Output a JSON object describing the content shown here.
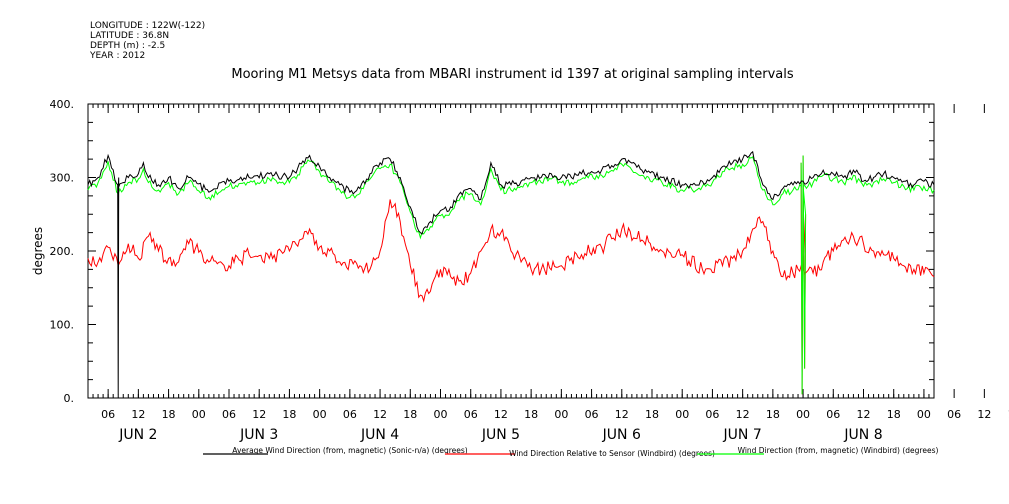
{
  "meta": {
    "longitude": "LONGITUDE : 122W(-122)",
    "latitude": "LATITUDE : 36.8N",
    "depth": "DEPTH (m) : -2.5",
    "year": "YEAR : 2012"
  },
  "chart_data": {
    "type": "line",
    "title": "Mooring M1 Metsys data from MBARI instrument id 1397 at original sampling intervals",
    "ylabel": "degrees",
    "ylim": [
      0,
      400
    ],
    "yticks": [
      "0.",
      "100.",
      "200.",
      "300.",
      "400."
    ],
    "xlim_hours": [
      -10,
      158
    ],
    "hour_tick_labels": [
      "06",
      "12",
      "18",
      "00",
      "06",
      "12",
      "18",
      "00",
      "06",
      "12",
      "18",
      "00",
      "06",
      "12",
      "18",
      "00",
      "06",
      "12",
      "18",
      "00",
      "06",
      "12",
      "18",
      "00",
      "06",
      "12",
      "18",
      "00",
      "06",
      "12",
      "18",
      "00"
    ],
    "day_labels": [
      "JUN  2",
      "JUN  3",
      "JUN  4",
      "JUN  5",
      "JUN  6",
      "JUN  7",
      "JUN  8"
    ],
    "grid": false,
    "legend_position": "bottom",
    "series": [
      {
        "name": "Average Wind Direction (from, magnetic) (Sonic-n/a) (degrees)",
        "color": "#000000",
        "x": [
          -10,
          -8,
          -6,
          -4,
          -2,
          0,
          1,
          2,
          4,
          6,
          8,
          10,
          14,
          18,
          22,
          26,
          30,
          34,
          36,
          38,
          40,
          42,
          44,
          46,
          48,
          50,
          52,
          54,
          56,
          58,
          60,
          62,
          64,
          66,
          68,
          70,
          72,
          74,
          76,
          78,
          80,
          82,
          84,
          86,
          88,
          92,
          96,
          100,
          104,
          108,
          110,
          112,
          114,
          116,
          118,
          120,
          122,
          124,
          126,
          128,
          130,
          132,
          134,
          136,
          138,
          140,
          142,
          144,
          146,
          148,
          150,
          152,
          154,
          156,
          158
        ],
        "y": [
          290,
          300,
          330,
          285,
          300,
          305,
          320,
          300,
          290,
          300,
          285,
          300,
          280,
          295,
          300,
          305,
          300,
          330,
          315,
          300,
          290,
          280,
          285,
          305,
          320,
          325,
          300,
          260,
          225,
          240,
          255,
          260,
          280,
          285,
          270,
          320,
          290,
          290,
          295,
          300,
          300,
          305,
          300,
          300,
          305,
          310,
          325,
          310,
          300,
          290,
          290,
          295,
          300,
          315,
          320,
          325,
          335,
          290,
          270,
          285,
          290,
          295,
          300,
          310,
          305,
          300,
          310,
          295,
          300,
          305,
          300,
          295,
          290,
          295,
          290
        ]
      },
      {
        "name": "Wind Direction Relative to Sensor (Windbird) (degrees)",
        "color": "#ff0000",
        "x": [
          -10,
          -8,
          -6,
          -4,
          -2,
          0,
          2,
          4,
          6,
          8,
          10,
          14,
          18,
          22,
          26,
          30,
          34,
          36,
          38,
          40,
          44,
          46,
          48,
          50,
          52,
          54,
          56,
          58,
          60,
          62,
          64,
          66,
          68,
          70,
          72,
          74,
          76,
          78,
          80,
          84,
          88,
          92,
          96,
          100,
          104,
          108,
          112,
          116,
          118,
          120,
          122,
          124,
          126,
          128,
          130,
          132,
          134,
          136,
          138,
          140,
          142,
          144,
          146,
          148,
          150,
          152,
          154,
          156,
          158
        ],
        "y": [
          190,
          185,
          205,
          180,
          210,
          190,
          220,
          200,
          190,
          185,
          210,
          185,
          180,
          195,
          190,
          200,
          230,
          205,
          200,
          185,
          180,
          175,
          200,
          270,
          240,
          180,
          140,
          145,
          175,
          165,
          160,
          170,
          200,
          230,
          225,
          200,
          185,
          175,
          175,
          180,
          195,
          205,
          230,
          215,
          200,
          195,
          175,
          180,
          190,
          200,
          230,
          240,
          200,
          165,
          170,
          175,
          170,
          185,
          200,
          215,
          220,
          210,
          200,
          195,
          190,
          180,
          175,
          170,
          165
        ]
      },
      {
        "name": "Wind Direction (from, magnetic) (Windbird) (degrees)",
        "color": "#00ff00",
        "x": [
          -10,
          -8,
          -6,
          -4,
          -2,
          0,
          1,
          2,
          4,
          6,
          8,
          10,
          14,
          18,
          22,
          26,
          30,
          34,
          36,
          38,
          40,
          42,
          44,
          46,
          48,
          50,
          52,
          54,
          56,
          58,
          60,
          62,
          64,
          66,
          68,
          70,
          72,
          74,
          76,
          78,
          80,
          82,
          84,
          86,
          88,
          92,
          96,
          100,
          104,
          108,
          110,
          112,
          114,
          116,
          118,
          120,
          122,
          124,
          126,
          128,
          130,
          132,
          134,
          136,
          138,
          140,
          142,
          144,
          146,
          148,
          150,
          152,
          154,
          156,
          158
        ],
        "y": [
          283,
          293,
          322,
          278,
          293,
          298,
          312,
          293,
          283,
          293,
          278,
          293,
          273,
          288,
          293,
          298,
          293,
          322,
          308,
          293,
          283,
          273,
          278,
          298,
          312,
          318,
          293,
          253,
          218,
          233,
          248,
          253,
          273,
          278,
          263,
          312,
          283,
          283,
          288,
          293,
          293,
          298,
          293,
          293,
          298,
          303,
          318,
          303,
          293,
          283,
          283,
          288,
          293,
          308,
          313,
          318,
          328,
          283,
          263,
          278,
          283,
          288,
          293,
          303,
          298,
          293,
          303,
          288,
          293,
          298,
          293,
          288,
          283,
          288,
          283
        ]
      }
    ],
    "annotations": [
      "sharp drop to near 0 at about 06 on JUN 2 (black)",
      "spikes to near 0 at about 16 on JUN 7 (red, green)"
    ]
  }
}
